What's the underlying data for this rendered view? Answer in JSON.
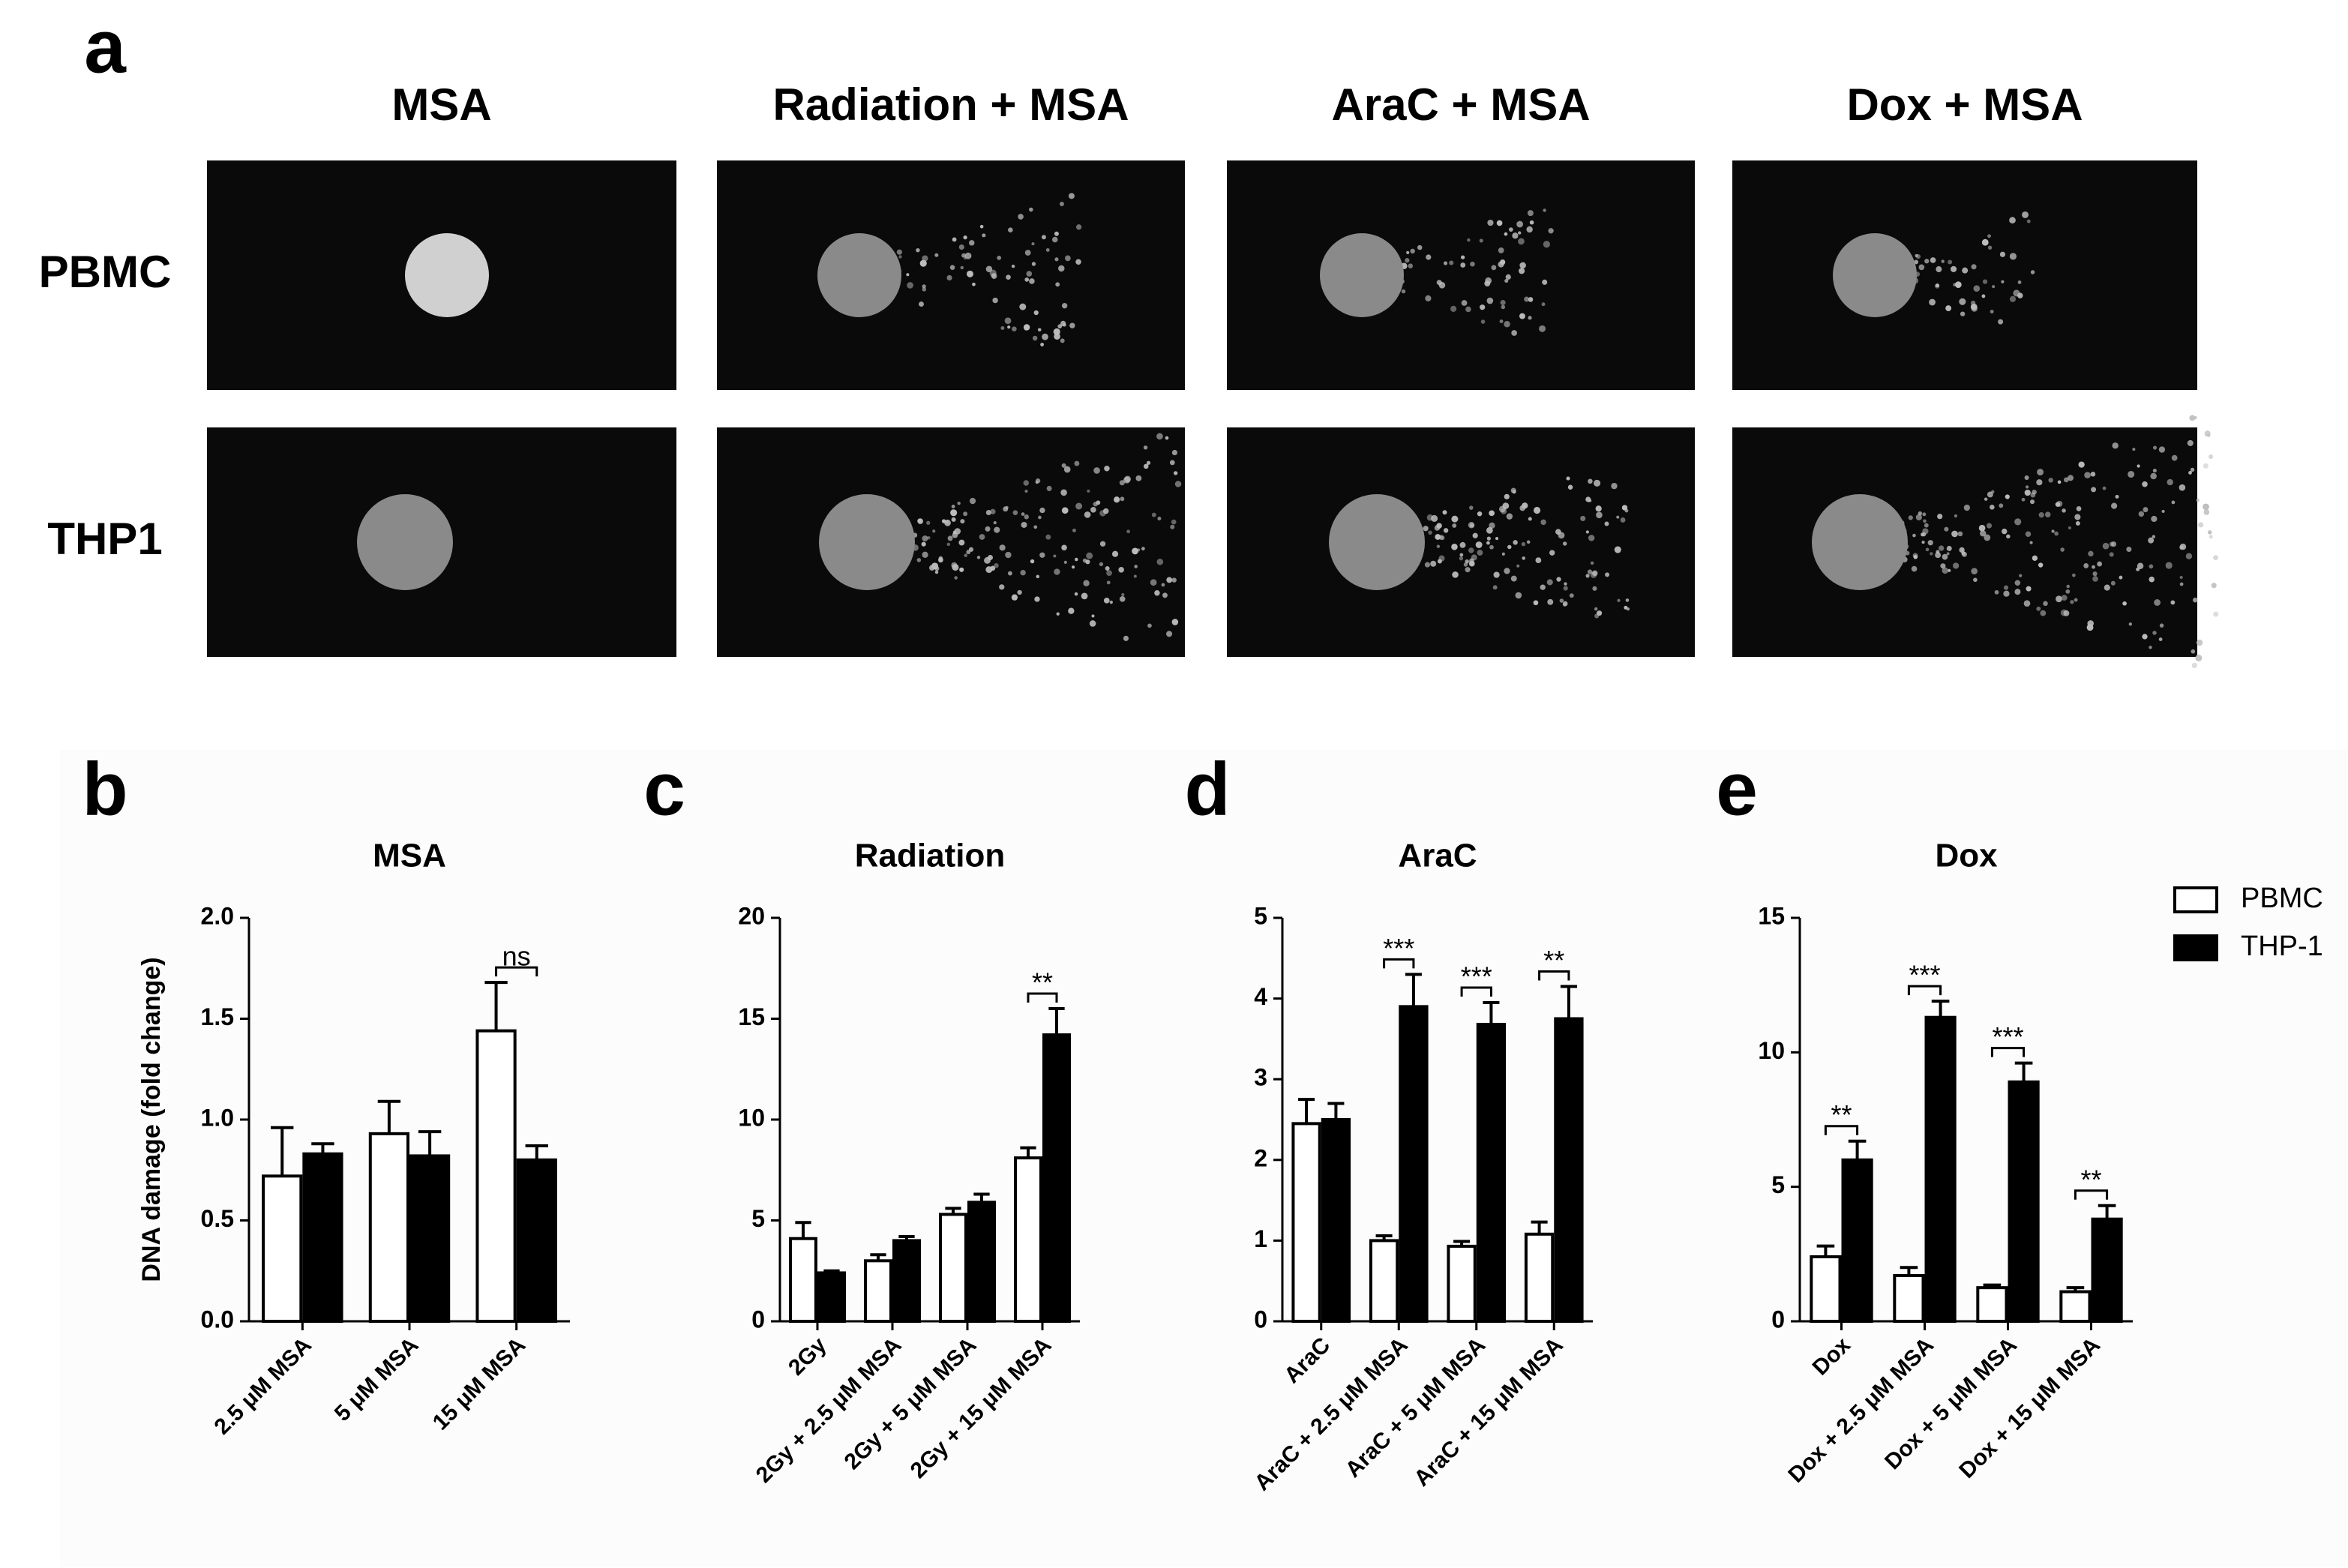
{
  "panel_a": {
    "letter": "a",
    "columns": [
      "MSA",
      "Radiation + MSA",
      "AraC + MSA",
      "Dox + MSA"
    ],
    "rows": [
      "PBMC",
      "THP1"
    ]
  },
  "chart_data": [
    {
      "type": "bar",
      "letter": "b",
      "title": "MSA",
      "ylabel": "DNA damage (fold change)",
      "categories": [
        "2.5 μM MSA",
        "5 μM MSA",
        "15 μM MSA"
      ],
      "series": [
        {
          "color": "#ffffff",
          "values": [
            0.72,
            0.93,
            1.44
          ],
          "errors": [
            0.24,
            0.16,
            0.24
          ]
        },
        {
          "color": "#000000",
          "values": [
            0.83,
            0.82,
            0.8
          ],
          "errors": [
            0.05,
            0.12,
            0.07
          ]
        }
      ],
      "significance": [
        null,
        null,
        "ns"
      ],
      "ylim": [
        0,
        2
      ],
      "yticks": [
        {
          "value": 0,
          "label": "0.0"
        },
        0.5,
        {
          "value": 1,
          "label": "1.0"
        },
        1.5,
        {
          "value": 2,
          "label": "2.0"
        }
      ]
    },
    {
      "type": "bar",
      "letter": "c",
      "title": "Radiation",
      "categories": [
        "2Gy",
        "2Gy + 2.5 μM MSA",
        "2Gy + 5 μM MSA",
        "2Gy + 15 μM MSA"
      ],
      "series": [
        {
          "color": "#ffffff",
          "values": [
            4.1,
            3.0,
            5.3,
            8.1
          ],
          "errors": [
            0.8,
            0.3,
            0.3,
            0.5
          ]
        },
        {
          "color": "#000000",
          "values": [
            2.4,
            4.0,
            5.9,
            14.2
          ],
          "errors": [
            0.1,
            0.2,
            0.4,
            1.3
          ]
        }
      ],
      "significance": [
        null,
        null,
        null,
        "**"
      ],
      "ylim": [
        0,
        20
      ],
      "yticks": [
        0,
        5,
        10,
        15,
        20
      ]
    },
    {
      "type": "bar",
      "letter": "d",
      "title": "AraC",
      "categories": [
        "AraC",
        "AraC + 2.5 μM MSA",
        "AraC + 5 μM MSA",
        "AraC + 15 μM MSA"
      ],
      "series": [
        {
          "color": "#ffffff",
          "values": [
            2.45,
            1.0,
            0.93,
            1.08
          ],
          "errors": [
            0.3,
            0.06,
            0.06,
            0.15
          ]
        },
        {
          "color": "#000000",
          "values": [
            2.5,
            3.9,
            3.68,
            3.75
          ],
          "errors": [
            0.2,
            0.4,
            0.27,
            0.4
          ]
        }
      ],
      "significance": [
        null,
        "***",
        "***",
        "**"
      ],
      "ylim": [
        0,
        5
      ],
      "yticks": [
        0,
        1,
        2,
        3,
        4,
        5
      ]
    },
    {
      "type": "bar",
      "letter": "e",
      "title": "Dox",
      "categories": [
        "Dox",
        "Dox + 2.5 μM MSA",
        "Dox + 5 μM MSA",
        "Dox + 15 μM MSA"
      ],
      "series": [
        {
          "name": "PBMC",
          "color": "#ffffff",
          "values": [
            2.4,
            1.7,
            1.25,
            1.1
          ],
          "errors": [
            0.4,
            0.3,
            0.1,
            0.15
          ]
        },
        {
          "name": "THP-1",
          "color": "#000000",
          "values": [
            6.0,
            11.3,
            8.9,
            3.8
          ],
          "errors": [
            0.7,
            0.6,
            0.7,
            0.5
          ]
        }
      ],
      "significance": [
        "**",
        "***",
        "***",
        "**"
      ],
      "ylim": [
        0,
        15
      ],
      "yticks": [
        0,
        5,
        10,
        15
      ]
    }
  ]
}
